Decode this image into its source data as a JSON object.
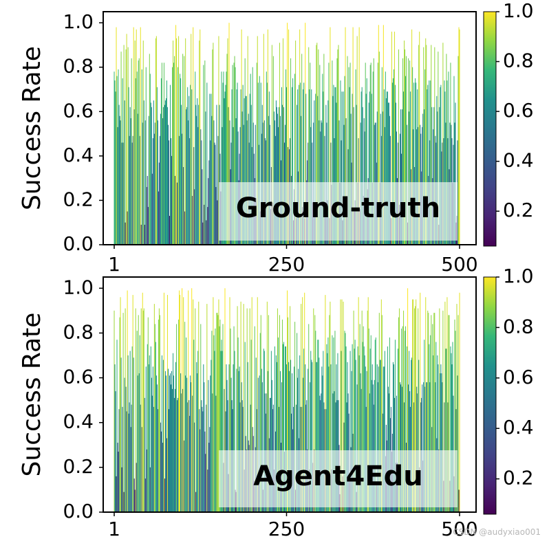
{
  "chart_data": [
    {
      "type": "bar",
      "panel_label": "Ground-truth",
      "ylabel": "Success Rate",
      "xlim": [
        1,
        500
      ],
      "ylim": [
        0,
        1.05
      ],
      "xticks": [
        "1",
        "250",
        "500"
      ],
      "yticks": [
        "0.0",
        "0.2",
        "0.4",
        "0.6",
        "0.8",
        "1.0"
      ],
      "colorbar": {
        "colormap": "viridis",
        "range": [
          0.06,
          1.0
        ],
        "ticks": [
          "0.2",
          "0.4",
          "0.6",
          "0.8",
          "1.0"
        ]
      },
      "n_bars": 500,
      "seed": 11,
      "note_values_mode": "approximate distribution of 500 bar heights"
    },
    {
      "type": "bar",
      "panel_label": "Agent4Edu",
      "ylabel": "Success Rate",
      "xlim": [
        1,
        500
      ],
      "ylim": [
        0,
        1.05
      ],
      "xticks": [
        "1",
        "250",
        "500"
      ],
      "yticks": [
        "0.0",
        "0.2",
        "0.4",
        "0.6",
        "0.8",
        "1.0"
      ],
      "colorbar": {
        "colormap": "viridis",
        "range": [
          0.06,
          1.0
        ],
        "ticks": [
          "0.2",
          "0.4",
          "0.6",
          "0.8",
          "1.0"
        ]
      },
      "n_bars": 500,
      "seed": 29,
      "note_values_mode": "approximate distribution of 500 bar heights"
    }
  ],
  "watermark": "CSDN @audyxiao001"
}
